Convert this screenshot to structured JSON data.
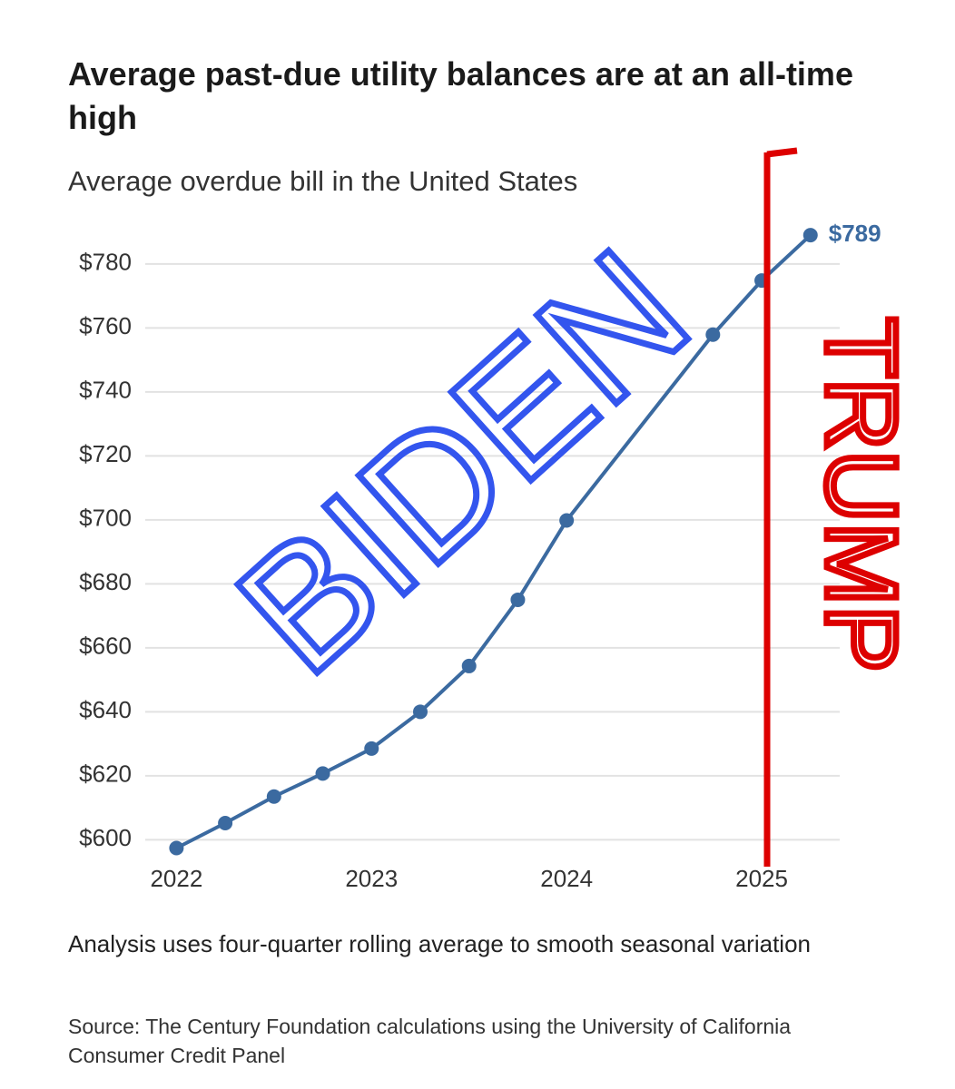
{
  "chart_data": {
    "type": "line",
    "title": "Average past-due utility balances are at an all-time high",
    "subtitle": "Average overdue bill in the United States",
    "note": "Analysis uses four-quarter rolling average to smooth seasonal variation",
    "source": "Source: The Century Foundation calculations using the University of California Consumer Credit Panel",
    "x": [
      2022,
      2022.25,
      2022.5,
      2022.75,
      2023,
      2023.25,
      2023.5,
      2023.75,
      2024,
      2024.75,
      2025,
      2025.25
    ],
    "series": [
      {
        "name": "Average overdue bill",
        "color": "#3b6aa0",
        "values": [
          597.4,
          605.2,
          613.5,
          620.7,
          628.5,
          640,
          654.3,
          675,
          699.8,
          757.9,
          774.8,
          789
        ],
        "value_labels": [
          null,
          null,
          null,
          null,
          null,
          null,
          null,
          null,
          null,
          null,
          null,
          "$789"
        ]
      }
    ],
    "xlim": [
      2021.84,
      2025.4
    ],
    "xticks": [
      2022,
      2023,
      2024,
      2025
    ],
    "ylim": [
      593,
      793
    ],
    "yticks": [
      {
        "value": 600,
        "label": "$600"
      },
      {
        "value": 620,
        "label": "$620"
      },
      {
        "value": 640,
        "label": "$640"
      },
      {
        "value": 660,
        "label": "$660"
      },
      {
        "value": 680,
        "label": "$680"
      },
      {
        "value": 700,
        "label": "$700"
      },
      {
        "value": 720,
        "label": "$720"
      },
      {
        "value": 740,
        "label": "$740"
      },
      {
        "value": 760,
        "label": "$760"
      },
      {
        "value": 780,
        "label": "$780"
      }
    ],
    "grid": true,
    "annotations": [
      {
        "text": "BIDEN",
        "color": "#3355ee"
      },
      {
        "text": "TRUMP",
        "color": "#dd0000"
      }
    ]
  }
}
